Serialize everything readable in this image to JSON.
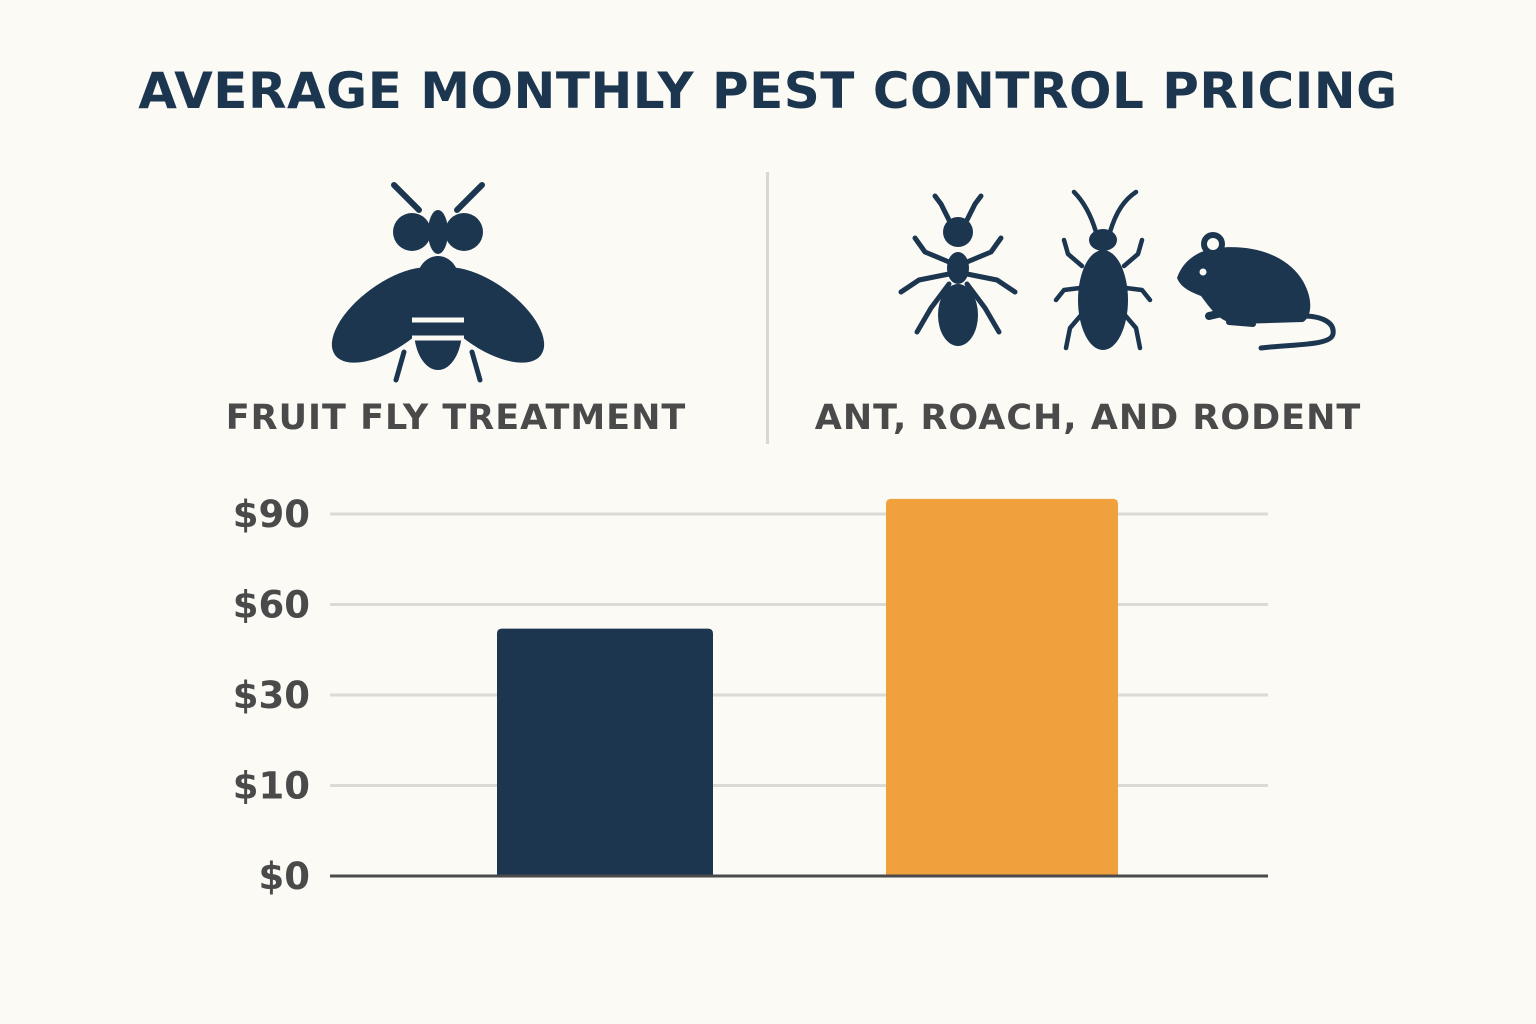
{
  "title": "AVERAGE MONTHLY PEST CONTROL PRICING",
  "categories": [
    {
      "label": "FRUIT FLY TREATMENT",
      "icons": [
        "fly-icon"
      ]
    },
    {
      "label": "ANT, ROACH, AND RODENT",
      "icons": [
        "ant-icon",
        "cockroach-icon",
        "rodent-icon"
      ]
    }
  ],
  "colors": {
    "primary": "#1c3650",
    "accent": "#f0a03c",
    "background": "#fbfaf5",
    "grid": "#dcdad4",
    "text": "#4a4a4a"
  },
  "chart_data": {
    "type": "bar",
    "title": "AVERAGE MONTHLY PEST CONTROL PRICING",
    "categories": [
      "FRUIT FLY TREATMENT",
      "ANT, ROACH, AND RODENT"
    ],
    "y_tick_labels": [
      "$0",
      "$10",
      "$30",
      "$60",
      "$90"
    ],
    "y_tick_values": [
      0,
      10,
      30,
      60,
      90
    ],
    "y_axis_scale": "uneven (ticks equally spaced)",
    "values": [
      52,
      95
    ],
    "bar_colors": [
      "#1c3650",
      "#f0a03c"
    ],
    "grid": true,
    "legend": "none"
  }
}
